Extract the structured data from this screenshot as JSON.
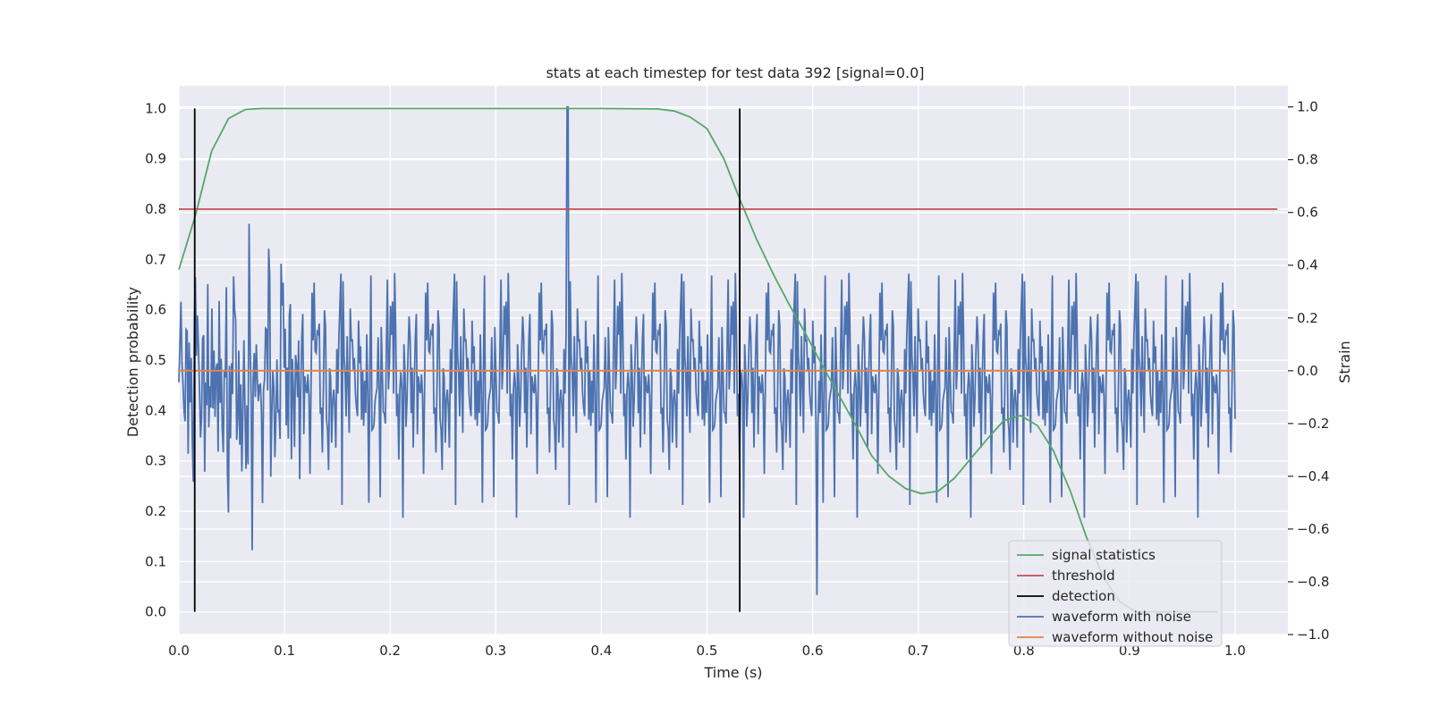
{
  "chart_data": {
    "type": "line",
    "title": "stats at each timestep for test data 392 [signal=0.0]",
    "xlabel": "Time (s)",
    "ylabel_left": "Detection probability",
    "ylabel_right": "Strain",
    "xlim": [
      0.0,
      1.05
    ],
    "ylim_left": [
      -0.045,
      1.045
    ],
    "ylim_right": [
      -1.0,
      1.08
    ],
    "x_ticks": [
      0.0,
      0.1,
      0.2,
      0.3,
      0.4,
      0.5,
      0.6,
      0.7,
      0.8,
      0.9,
      1.0
    ],
    "x_tick_labels": [
      "0.0",
      "0.1",
      "0.2",
      "0.3",
      "0.4",
      "0.5",
      "0.6",
      "0.7",
      "0.8",
      "0.9",
      "1.0"
    ],
    "y_left_ticks": [
      0.0,
      0.1,
      0.2,
      0.3,
      0.4,
      0.5,
      0.6,
      0.7,
      0.8,
      0.9,
      1.0
    ],
    "y_left_tick_labels": [
      "0.0",
      "0.1",
      "0.2",
      "0.3",
      "0.4",
      "0.5",
      "0.6",
      "0.7",
      "0.8",
      "0.9",
      "1.0"
    ],
    "y_right_ticks": [
      -1.0,
      -0.8,
      -0.6,
      -0.4,
      -0.2,
      0.0,
      0.2,
      0.4,
      0.6,
      0.8,
      1.0
    ],
    "y_right_tick_labels": [
      "−1.0",
      "−0.8",
      "−0.6",
      "−0.4",
      "−0.2",
      "0.0",
      "0.2",
      "0.4",
      "0.6",
      "0.8",
      "1.0"
    ],
    "grid": true,
    "legend_position": "lower-right",
    "legend": [
      {
        "label": "signal statistics",
        "color": "#55a868"
      },
      {
        "label": "threshold",
        "color": "#c44e52"
      },
      {
        "label": "detection",
        "color": "#000000"
      },
      {
        "label": "waveform with noise",
        "color": "#4c72b0"
      },
      {
        "label": "waveform without noise",
        "color": "#dd8452"
      }
    ],
    "signal_statistics": {
      "axis": "left",
      "x": [
        0.0,
        0.016,
        0.031,
        0.047,
        0.063,
        0.078,
        0.094,
        0.2,
        0.3,
        0.4,
        0.453,
        0.469,
        0.484,
        0.5,
        0.516,
        0.531,
        0.547,
        0.563,
        0.578,
        0.594,
        0.609,
        0.625,
        0.641,
        0.656,
        0.672,
        0.688,
        0.703,
        0.719,
        0.734,
        0.75,
        0.766,
        0.781,
        0.797,
        0.813,
        0.828,
        0.844,
        0.859,
        0.875,
        0.891,
        0.906,
        0.922,
        0.938,
        0.953,
        0.969,
        0.984
      ],
      "y": [
        0.68,
        0.79,
        0.915,
        0.98,
        0.998,
        1.0,
        1.0,
        1.0,
        1.0,
        1.0,
        0.999,
        0.995,
        0.983,
        0.96,
        0.9,
        0.82,
        0.74,
        0.67,
        0.61,
        0.55,
        0.49,
        0.43,
        0.37,
        0.31,
        0.27,
        0.245,
        0.235,
        0.24,
        0.265,
        0.305,
        0.345,
        0.38,
        0.39,
        0.37,
        0.32,
        0.24,
        0.15,
        0.07,
        0.02,
        0.0,
        0.0,
        0.0,
        0.0,
        0.0,
        0.0
      ]
    },
    "threshold": {
      "axis": "left",
      "y": 0.8,
      "x": [
        0.0,
        1.04
      ]
    },
    "detection": {
      "axis": "left",
      "x": [
        0.015,
        0.531
      ],
      "y": [
        0.0,
        1.0
      ]
    },
    "waveform_without_noise": {
      "axis": "right",
      "y": 0.0,
      "x": [
        0.0,
        1.0
      ]
    },
    "waveform_with_noise": {
      "axis": "right",
      "x_range": [
        0.0,
        1.0
      ],
      "n_points": 1024,
      "approx_range": [
        -0.85,
        1.0
      ],
      "peak": {
        "x": 0.368,
        "y": 1.0
      },
      "min": {
        "x": 0.604,
        "y": -0.85
      }
    }
  }
}
